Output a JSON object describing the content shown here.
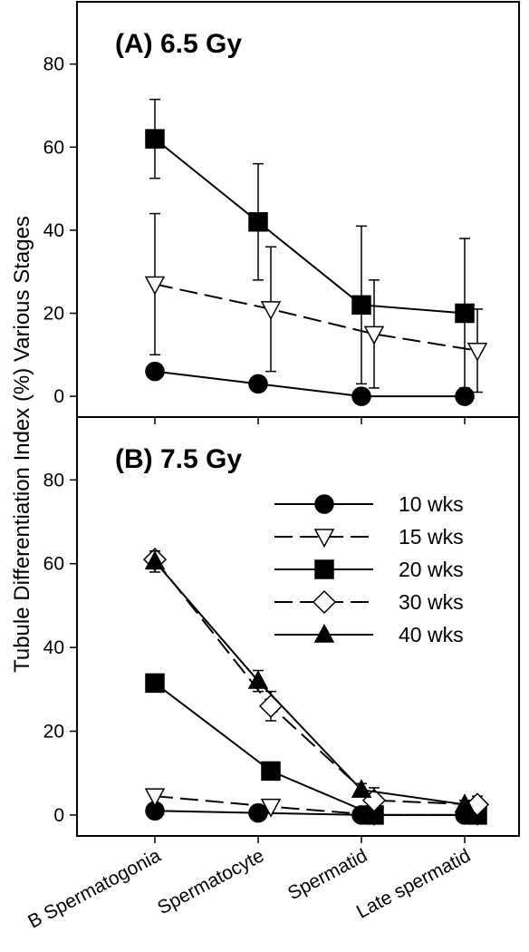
{
  "chart_data": {
    "type": "line",
    "ylabel": "Tubule Differentiation Index (%) Various Stages",
    "categories": [
      "B Spermatogonia",
      "Spermatocyte",
      "Spermatid",
      "Late spermatid"
    ],
    "ylim": [
      -5,
      95
    ],
    "yticks": [
      "0",
      "20",
      "40",
      "60",
      "80"
    ],
    "legend": {
      "placement": "right",
      "entries": [
        {
          "label": "10 wks",
          "marker": "circle-filled",
          "dash": "solid"
        },
        {
          "label": "15 wks",
          "marker": "triangle-down-open",
          "dash": "dashed"
        },
        {
          "label": "20 wks",
          "marker": "square-filled",
          "dash": "solid"
        },
        {
          "label": "30 wks",
          "marker": "diamond-open",
          "dash": "dashed"
        },
        {
          "label": "40 wks",
          "marker": "triangle-up-filled",
          "dash": "solid"
        }
      ]
    },
    "panels": [
      {
        "label": "(A)  6.5 Gy",
        "series": [
          {
            "name": "10 wks",
            "marker": "circle-filled",
            "dash": "solid",
            "offset": 0,
            "values": [
              6,
              3,
              0,
              0
            ],
            "err": [
              0,
              0,
              0,
              0
            ]
          },
          {
            "name": "15 wks",
            "marker": "triangle-down-open",
            "dash": "dashed",
            "offset": 1,
            "values": [
              27,
              21,
              15,
              11
            ],
            "err": [
              17,
              15,
              13,
              10
            ]
          },
          {
            "name": "20 wks",
            "marker": "square-filled",
            "dash": "solid",
            "offset": 0,
            "values": [
              62,
              42,
              22,
              20
            ],
            "err": [
              9.5,
              14,
              19,
              18
            ]
          }
        ]
      },
      {
        "label": "(B)  7.5 Gy",
        "series": [
          {
            "name": "10 wks",
            "marker": "circle-filled",
            "dash": "solid",
            "offset": 0,
            "values": [
              1,
              0.5,
              0,
              0
            ],
            "err": [
              0,
              0,
              0,
              0
            ]
          },
          {
            "name": "15 wks",
            "marker": "triangle-down-open",
            "dash": "dashed",
            "offset": 1,
            "values": [
              4.5,
              2,
              0,
              0
            ],
            "err": [
              0,
              0,
              0,
              0
            ]
          },
          {
            "name": "20 wks",
            "marker": "square-filled",
            "dash": "solid",
            "offset": 1,
            "values": [
              31.5,
              10.5,
              0,
              0
            ],
            "err": [
              0,
              0,
              0,
              0
            ]
          },
          {
            "name": "30 wks",
            "marker": "diamond-open",
            "dash": "dashed",
            "offset": 1,
            "values": [
              61,
              26,
              3.5,
              2.5
            ],
            "err": [
              2,
              3.5,
              3,
              2
            ]
          },
          {
            "name": "40 wks",
            "marker": "triangle-up-filled",
            "dash": "solid",
            "offset": 0,
            "values": [
              60.5,
              32,
              6,
              2.5
            ],
            "err": [
              2.5,
              2.5,
              1.5,
              1
            ]
          }
        ]
      }
    ]
  }
}
